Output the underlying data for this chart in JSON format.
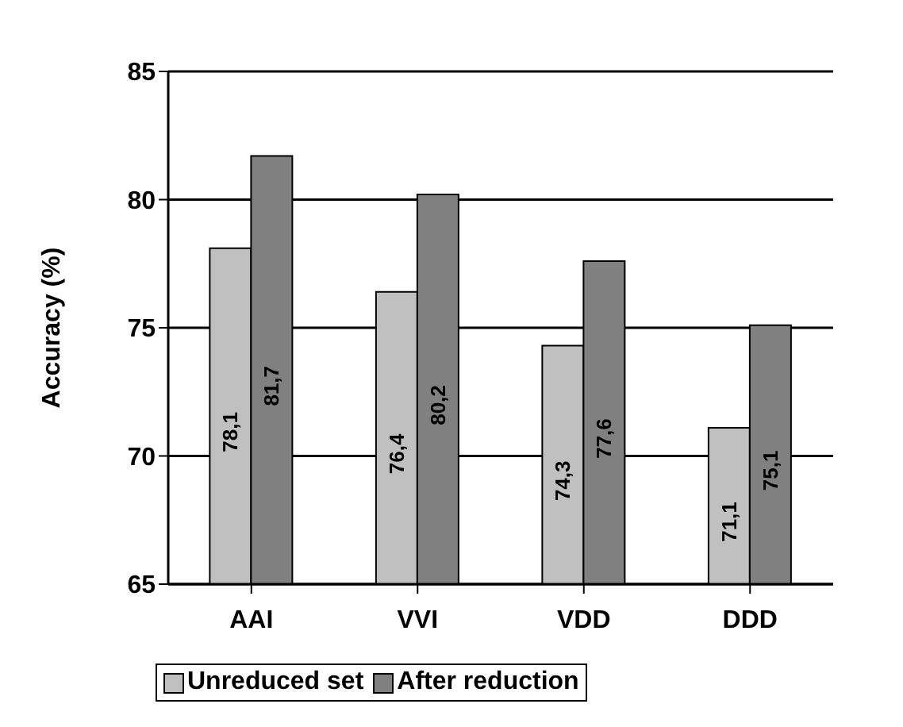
{
  "chart_data": {
    "type": "bar",
    "ylabel": "Accuracy (%)",
    "categories": [
      "AAI",
      "VVI",
      "VDD",
      "DDD"
    ],
    "series": [
      {
        "name": "Unreduced set",
        "color": "#c0c0c0",
        "values": [
          78.1,
          76.4,
          74.3,
          71.1
        ],
        "value_labels": [
          "78,1",
          "76,4",
          "74,3",
          "71,1"
        ]
      },
      {
        "name": "After reduction",
        "color": "#808080",
        "values": [
          81.7,
          80.2,
          77.6,
          75.1
        ],
        "value_labels": [
          "81,7",
          "80,2",
          "77,6",
          "75,1"
        ]
      }
    ],
    "ylim": [
      65,
      85
    ],
    "yticks": [
      65,
      70,
      75,
      80,
      85
    ],
    "grid": "y",
    "legend": "bottom"
  }
}
